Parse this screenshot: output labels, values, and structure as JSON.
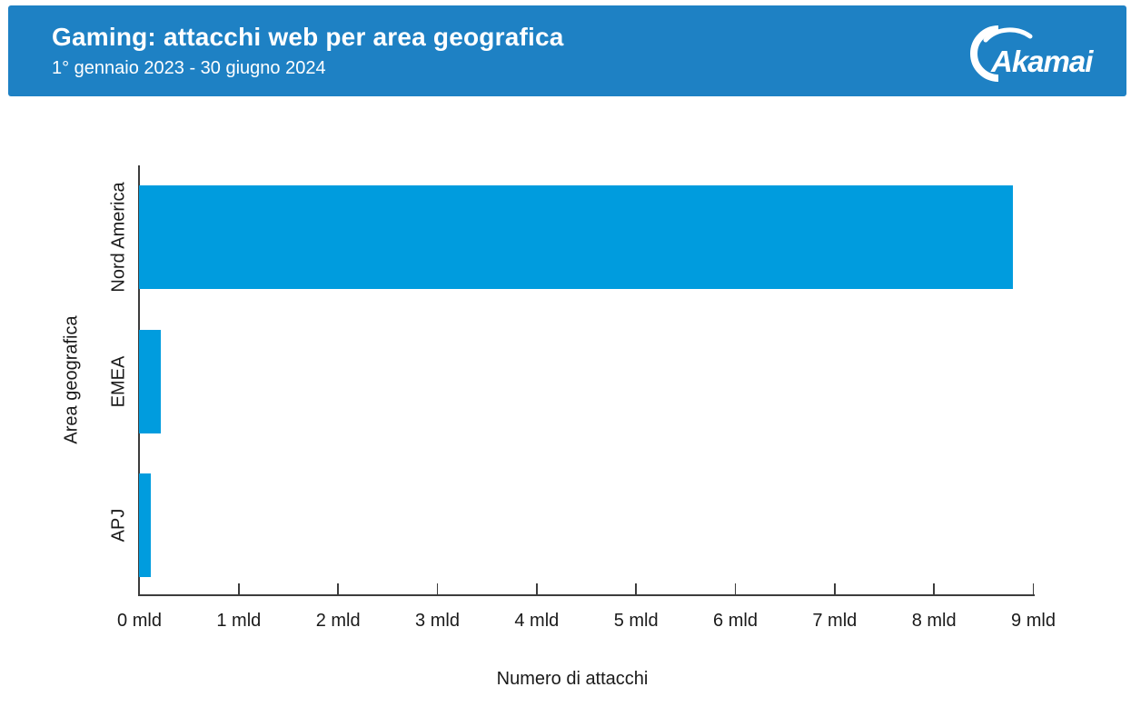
{
  "header": {
    "title": "Gaming: attacchi web per area geografica",
    "subtitle": "1° gennaio 2023 - 30 giugno 2024",
    "logo_text": "Akamai",
    "background_color": "#1e81c4",
    "text_color": "#ffffff"
  },
  "chart_data": {
    "type": "bar",
    "orientation": "horizontal",
    "title": "Gaming: attacchi web per area geografica",
    "subtitle": "1° gennaio 2023 - 30 giugno 2024",
    "xlabel": "Numero di attacchi",
    "ylabel": "Area geografica",
    "categories": [
      "Nord America",
      "EMEA",
      "APJ"
    ],
    "values": [
      8.8,
      0.22,
      0.12
    ],
    "unit": "mld",
    "xlim": [
      0,
      9
    ],
    "x_ticks": [
      0,
      1,
      2,
      3,
      4,
      5,
      6,
      7,
      8,
      9
    ],
    "x_tick_labels": [
      "0 mld",
      "1 mld",
      "2 mld",
      "3 mld",
      "4 mld",
      "5 mld",
      "6 mld",
      "7 mld",
      "8 mld",
      "9 mld"
    ],
    "bar_color": "#009cde",
    "axis_color": "#3c3c3c",
    "grid": false,
    "legend": null
  }
}
